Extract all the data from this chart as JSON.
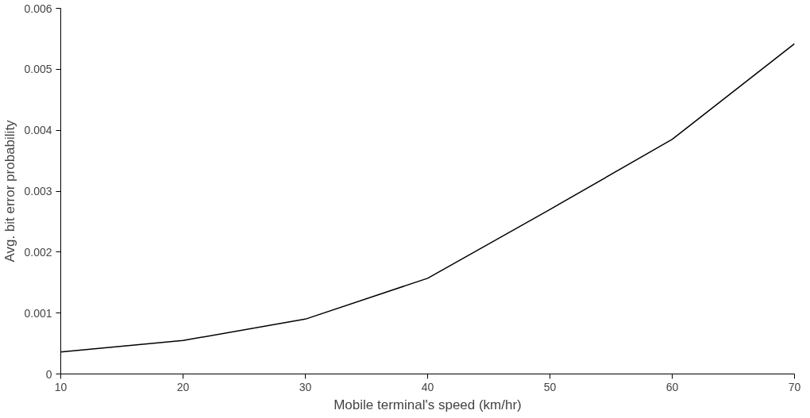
{
  "chart_data": {
    "type": "line",
    "xlabel": "Mobile terminal's speed (km/hr)",
    "ylabel": "Avg. bit error probability",
    "x": [
      10,
      20,
      30,
      40,
      50,
      60,
      70
    ],
    "series": [
      {
        "color": "#000000",
        "values": [
          0.00036,
          0.00055,
          0.0009,
          0.00157,
          0.0027,
          0.00385,
          0.00542
        ]
      }
    ],
    "xlim": [
      10,
      70
    ],
    "xticks": [
      10,
      20,
      30,
      40,
      50,
      60,
      70
    ],
    "ylim": [
      0,
      0.006
    ],
    "yticks": [
      0,
      0.001,
      0.002,
      0.003,
      0.004,
      0.005,
      0.006
    ],
    "grid": false,
    "marker": "none",
    "line_style": "solid"
  }
}
